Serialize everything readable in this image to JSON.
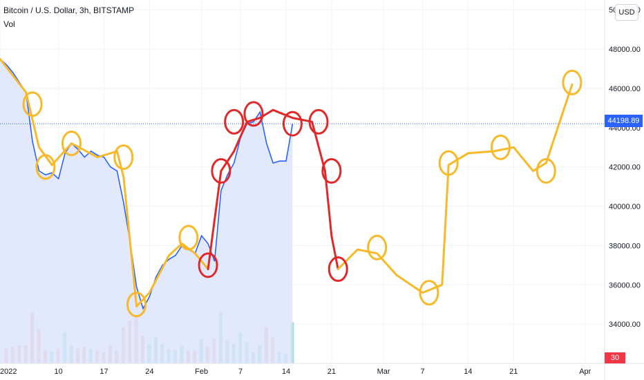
{
  "header": {
    "title": "Bitcoin / U.S. Dollar, 3h, BITSTAMP",
    "volume_label": "Vol",
    "currency_button": "USD"
  },
  "price_tag": "44198.89",
  "volume_tag": "30",
  "colors": {
    "price_line": "#2962ff",
    "area_fill": "#dbe3fd",
    "projection_yellow": "#f7b928",
    "projection_red": "#e02828",
    "current_price_line": "#2962ff",
    "volume_up": "#a6dcd6",
    "volume_down": "#f5b8b8",
    "grid": "#f0f3fa"
  },
  "chart_data": {
    "type": "line",
    "title": "Bitcoin / U.S. Dollar, 3h, BITSTAMP",
    "xlabel": "",
    "ylabel": "",
    "x_tick_labels": [
      "2022",
      "10",
      "17",
      "24",
      "Feb",
      "7",
      "14",
      "21",
      "Mar",
      "7",
      "14",
      "21",
      "Apr"
    ],
    "x_tick_dates": [
      "2022-01-01",
      "2022-01-10",
      "2022-01-17",
      "2022-01-24",
      "2022-02-01",
      "2022-02-07",
      "2022-02-14",
      "2022-02-21",
      "2022-03-01",
      "2022-03-07",
      "2022-03-14",
      "2022-03-21",
      "2022-04-01"
    ],
    "x_range": [
      "2022-01-01",
      "2022-04-04"
    ],
    "y_tick_labels": [
      "34000.00",
      "36000.00",
      "38000.00",
      "40000.00",
      "42000.00",
      "44000.00",
      "46000.00",
      "48000.00",
      "50000.00"
    ],
    "y_range": [
      32000,
      50500
    ],
    "current_price": 44198.89,
    "grid": true,
    "series": [
      {
        "style": "area-line",
        "x": [
          "2022-01-01",
          "2022-01-02",
          "2022-01-03",
          "2022-01-04",
          "2022-01-05",
          "2022-01-06",
          "2022-01-07",
          "2022-01-08",
          "2022-01-09",
          "2022-01-10",
          "2022-01-11",
          "2022-01-12",
          "2022-01-13",
          "2022-01-14",
          "2022-01-15",
          "2022-01-16",
          "2022-01-17",
          "2022-01-18",
          "2022-01-19",
          "2022-01-20",
          "2022-01-21",
          "2022-01-22",
          "2022-01-23",
          "2022-01-24",
          "2022-01-25",
          "2022-01-26",
          "2022-01-27",
          "2022-01-28",
          "2022-01-29",
          "2022-01-30",
          "2022-01-31",
          "2022-02-01",
          "2022-02-02",
          "2022-02-03",
          "2022-02-04",
          "2022-02-05",
          "2022-02-06",
          "2022-02-07",
          "2022-02-08",
          "2022-02-09",
          "2022-02-10",
          "2022-02-11",
          "2022-02-12",
          "2022-02-13",
          "2022-02-14",
          "2022-02-15"
        ],
        "values": [
          47500,
          47200,
          46800,
          46300,
          45800,
          43300,
          41800,
          41600,
          41700,
          41400,
          42700,
          43200,
          42900,
          42500,
          42800,
          42600,
          42500,
          42000,
          41800,
          40200,
          38200,
          35900,
          34800,
          35400,
          36400,
          37000,
          37300,
          37500,
          38000,
          37800,
          37600,
          38500,
          38100,
          37200,
          40800,
          41600,
          42200,
          43500,
          44200,
          44300,
          44800,
          43200,
          42200,
          42300,
          42300,
          44200
        ]
      },
      {
        "style": "freehand-projection",
        "color": "#f7b928",
        "x": [
          "2022-01-01",
          "2022-01-05",
          "2022-01-07",
          "2022-01-09",
          "2022-01-12",
          "2022-01-16",
          "2022-01-19",
          "2022-01-20",
          "2022-01-22",
          "2022-01-24",
          "2022-01-27",
          "2022-01-29",
          "2022-01-31",
          "2022-02-02"
        ],
        "values": [
          47500,
          45800,
          43000,
          42100,
          43200,
          42500,
          42800,
          41500,
          34900,
          35600,
          37500,
          38100,
          37600,
          36800
        ]
      },
      {
        "style": "freehand-projection",
        "color": "#e02828",
        "x": [
          "2022-02-02",
          "2022-02-04",
          "2022-02-06",
          "2022-02-08",
          "2022-02-10",
          "2022-02-12",
          "2022-02-15",
          "2022-02-18",
          "2022-02-20",
          "2022-02-21",
          "2022-02-22"
        ],
        "values": [
          36800,
          41800,
          42800,
          44300,
          44500,
          44900,
          44500,
          44300,
          41800,
          38500,
          36800
        ]
      },
      {
        "style": "freehand-projection",
        "color": "#f7b928",
        "x": [
          "2022-02-22",
          "2022-02-25",
          "2022-02-28",
          "2022-03-03",
          "2022-03-07",
          "2022-03-10",
          "2022-03-11",
          "2022-03-14",
          "2022-03-18",
          "2022-03-21",
          "2022-03-24",
          "2022-03-26",
          "2022-03-28",
          "2022-03-30"
        ],
        "values": [
          36800,
          37800,
          37600,
          36500,
          35600,
          36000,
          42100,
          42700,
          42800,
          43000,
          41800,
          42200,
          44200,
          46200
        ]
      }
    ],
    "annotations": [
      {
        "type": "circle",
        "color": "#f7b928",
        "x": "2022-01-06",
        "y": 45200
      },
      {
        "type": "circle",
        "color": "#f7b928",
        "x": "2022-01-08",
        "y": 42000
      },
      {
        "type": "circle",
        "color": "#f7b928",
        "x": "2022-01-12",
        "y": 43200
      },
      {
        "type": "circle",
        "color": "#f7b928",
        "x": "2022-01-20",
        "y": 42500
      },
      {
        "type": "circle",
        "color": "#f7b928",
        "x": "2022-01-22",
        "y": 35000
      },
      {
        "type": "circle",
        "color": "#f7b928",
        "x": "2022-01-30",
        "y": 38400
      },
      {
        "type": "circle",
        "color": "#e02828",
        "x": "2022-02-02",
        "y": 37000
      },
      {
        "type": "circle",
        "color": "#e02828",
        "x": "2022-02-04",
        "y": 41800
      },
      {
        "type": "circle",
        "color": "#e02828",
        "x": "2022-02-06",
        "y": 44300
      },
      {
        "type": "circle",
        "color": "#e02828",
        "x": "2022-02-09",
        "y": 44700
      },
      {
        "type": "circle",
        "color": "#e02828",
        "x": "2022-02-15",
        "y": 44200
      },
      {
        "type": "circle",
        "color": "#e02828",
        "x": "2022-02-19",
        "y": 44300
      },
      {
        "type": "circle",
        "color": "#e02828",
        "x": "2022-02-21",
        "y": 41800
      },
      {
        "type": "circle",
        "color": "#e02828",
        "x": "2022-02-22",
        "y": 36800
      },
      {
        "type": "circle",
        "color": "#f7b928",
        "x": "2022-02-28",
        "y": 37900
      },
      {
        "type": "circle",
        "color": "#f7b928",
        "x": "2022-03-08",
        "y": 35600
      },
      {
        "type": "circle",
        "color": "#f7b928",
        "x": "2022-03-11",
        "y": 42200
      },
      {
        "type": "circle",
        "color": "#f7b928",
        "x": "2022-03-19",
        "y": 43000
      },
      {
        "type": "circle",
        "color": "#f7b928",
        "x": "2022-03-26",
        "y": 41800
      },
      {
        "type": "circle",
        "color": "#f7b928",
        "x": "2022-03-30",
        "y": 46300
      }
    ]
  }
}
